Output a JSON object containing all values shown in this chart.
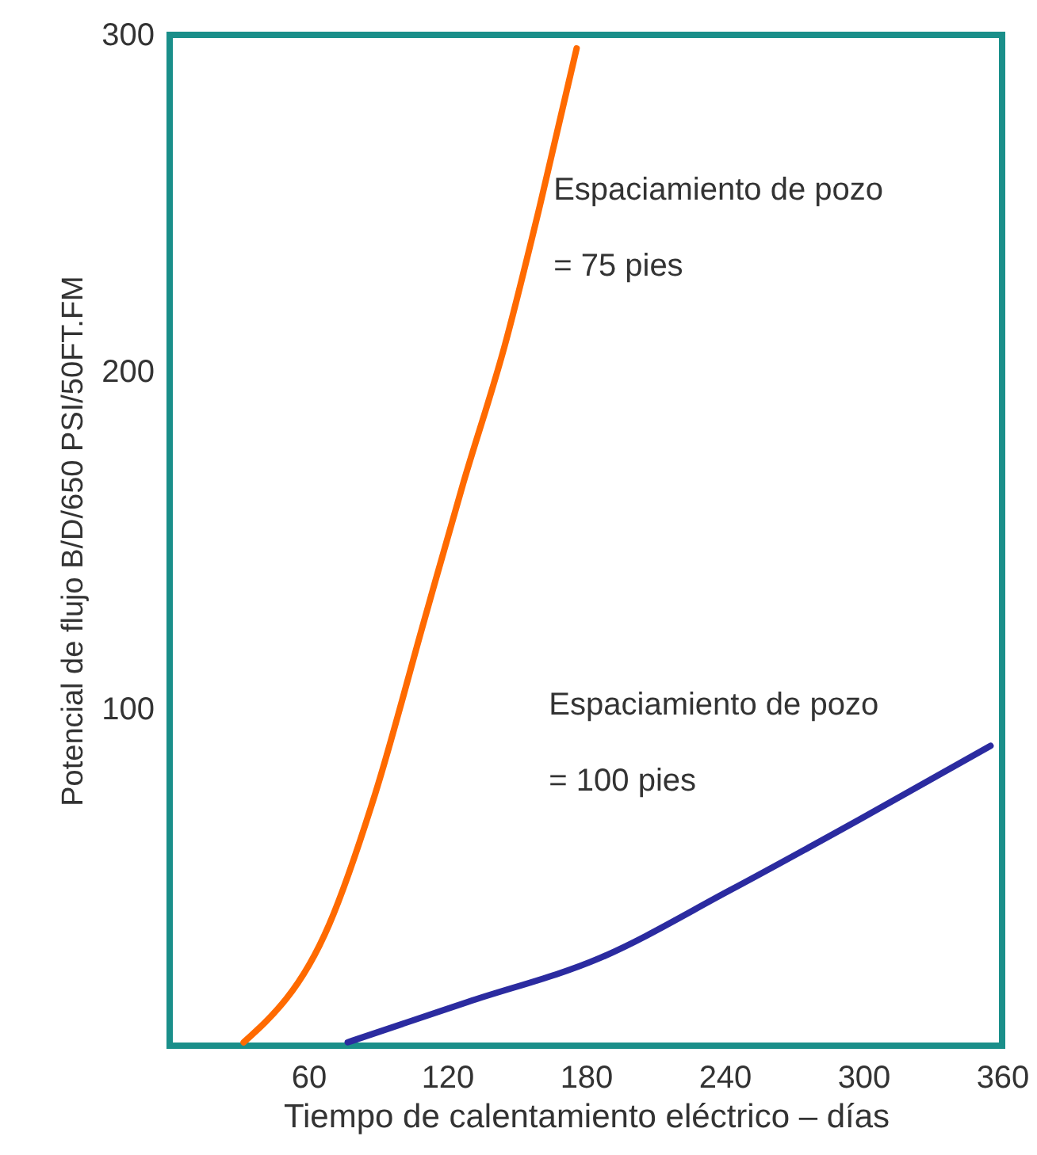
{
  "chart_data": {
    "type": "line",
    "xlabel": "Tiempo de calentamiento eléctrico – días",
    "ylabel": "Potencial de flujo B/D/650 PSI/50FT.FM",
    "xlim": [
      0,
      360
    ],
    "xticks": [
      60,
      120,
      180,
      240,
      300,
      360
    ],
    "ylim": [
      0,
      300
    ],
    "yticks": [
      100,
      200,
      300
    ],
    "grid": false,
    "series": [
      {
        "name": "Espaciamiento de pozo\n= 75 pies",
        "color": "#ff6a00",
        "x": [
          32,
          69,
          89,
          110,
          127,
          145,
          160,
          176
        ],
        "values": [
          1,
          36,
          75,
          126,
          167,
          208,
          249,
          296
        ]
      },
      {
        "name": "Espaciamiento de pozo\n= 100 pies",
        "color": "#2b2ba0",
        "x": [
          77,
          129,
          186,
          242,
          298,
          355
        ],
        "values": [
          1,
          13,
          26,
          46,
          67,
          89
        ]
      }
    ]
  }
}
